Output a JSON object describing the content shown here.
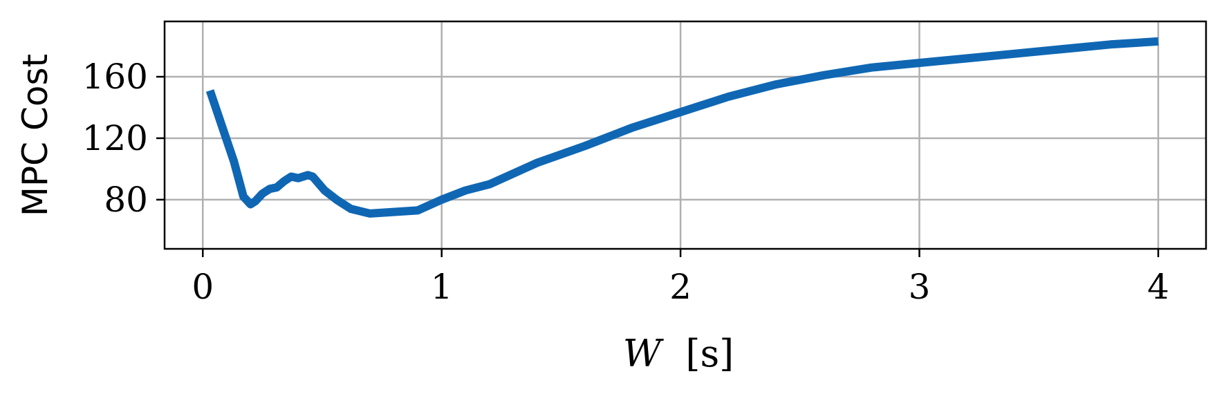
{
  "chart_data": {
    "type": "line",
    "title": "",
    "xlabel_var": "W",
    "xlabel_unit": "[s]",
    "ylabel": "MPC Cost",
    "xlim": [
      -0.16,
      4.2
    ],
    "ylim": [
      48,
      196
    ],
    "x_ticks": [
      0,
      1,
      2,
      3,
      4
    ],
    "y_ticks": [
      80,
      120,
      160
    ],
    "grid": true,
    "legend": "none",
    "colors": {
      "series": "#0f67b4",
      "grid": "#b0b0b0",
      "frame": "#000000"
    },
    "series": [
      {
        "x": [
          0.03,
          0.08,
          0.13,
          0.17,
          0.2,
          0.22,
          0.25,
          0.28,
          0.31,
          0.34,
          0.37,
          0.4,
          0.42,
          0.44,
          0.46,
          0.51,
          0.56,
          0.62,
          0.7,
          0.8,
          0.9,
          1.0,
          1.1,
          1.2,
          1.4,
          1.6,
          1.8,
          2.0,
          2.2,
          2.4,
          2.6,
          2.8,
          3.0,
          3.2,
          3.4,
          3.6,
          3.8,
          4.0
        ],
        "y": [
          151,
          128,
          105,
          82,
          77,
          79,
          84,
          87,
          88,
          92,
          95,
          94,
          95,
          96,
          95,
          86,
          80,
          74,
          71,
          72,
          73,
          80,
          86,
          90,
          104,
          115,
          127,
          137,
          147,
          155,
          161,
          166,
          169,
          172,
          175,
          178,
          181,
          183
        ]
      }
    ]
  }
}
